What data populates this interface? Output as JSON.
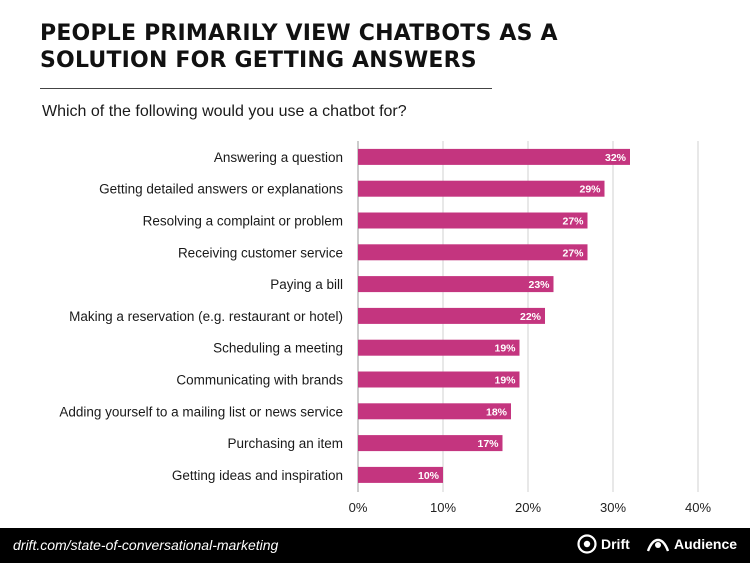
{
  "header": {
    "title_line1": "PEOPLE PRIMARILY VIEW CHATBOTS AS A",
    "title_line2": "SOLUTION FOR GETTING ANSWERS",
    "subtitle": "Which of the following would you use a chatbot for?"
  },
  "chart_data": {
    "type": "bar",
    "orientation": "horizontal",
    "categories": [
      "Answering a question",
      "Getting detailed answers or explanations",
      "Resolving a complaint or problem",
      "Receiving customer service",
      "Paying a bill",
      "Making a reservation (e.g. restaurant or hotel)",
      "Scheduling a meeting",
      "Communicating with brands",
      "Adding yourself to a mailing list or news service",
      "Purchasing an item",
      "Getting ideas and inspiration"
    ],
    "values": [
      32,
      29,
      27,
      27,
      23,
      22,
      19,
      19,
      18,
      17,
      10
    ],
    "value_labels": [
      "32%",
      "29%",
      "27%",
      "27%",
      "23%",
      "22%",
      "19%",
      "19%",
      "18%",
      "17%",
      "10%"
    ],
    "xlim": [
      0,
      40
    ],
    "xticks": [
      0,
      10,
      20,
      30,
      40
    ],
    "xtick_labels": [
      "0%",
      "10%",
      "20%",
      "30%",
      "40%"
    ],
    "grid": "vertical",
    "bar_color": "#c4357f"
  },
  "footer": {
    "url": "drift.com/state-of-conversational-marketing",
    "brand_drift": "Drift",
    "brand_audience": "Audience",
    "drift_icon": "drift-logo-icon",
    "audience_icon": "audience-logo-icon"
  }
}
